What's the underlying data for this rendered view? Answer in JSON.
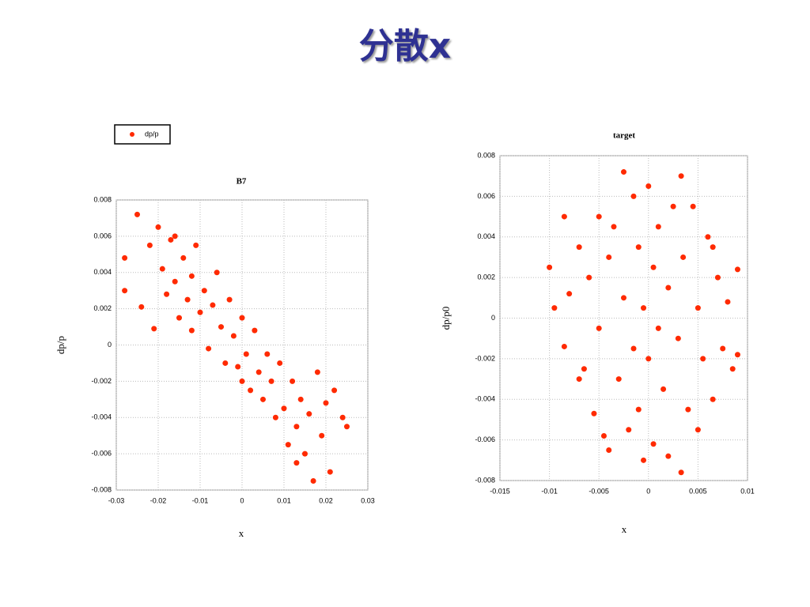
{
  "title": "分散x",
  "chart_data": [
    {
      "type": "scatter",
      "title": "B7",
      "x_label": "x",
      "y_label": "dp/p",
      "xlim": [
        -0.03,
        0.03
      ],
      "xticks": [
        -0.03,
        -0.02,
        -0.01,
        0,
        0.01,
        0.02,
        0.03
      ],
      "ylim": [
        -0.008,
        0.008
      ],
      "yticks": [
        -0.008,
        -0.006,
        -0.004,
        -0.002,
        0,
        0.002,
        0.004,
        0.006,
        0.008
      ],
      "grid": true,
      "series": [
        {
          "name": "dp/p",
          "color": "#ff2a00",
          "x": [
            -0.025,
            -0.028,
            -0.028,
            -0.024,
            -0.022,
            -0.02,
            -0.019,
            -0.018,
            -0.017,
            -0.016,
            -0.015,
            -0.014,
            -0.013,
            -0.012,
            -0.012,
            -0.011,
            -0.01,
            -0.009,
            -0.008,
            -0.007,
            -0.006,
            -0.005,
            -0.004,
            -0.003,
            -0.002,
            -0.001,
            0,
            0.001,
            0.002,
            0.003,
            0.004,
            0.005,
            0.006,
            0.007,
            0.008,
            0.009,
            0.01,
            0.011,
            0.012,
            0.013,
            0.014,
            0.015,
            0.016,
            0.017,
            0.018,
            0.019,
            0.02,
            0.021,
            0.022,
            0.024,
            0.025,
            -0.021,
            0,
            0.013,
            -0.016
          ],
          "values": [
            0.0072,
            0.0048,
            0.003,
            0.0021,
            0.0055,
            0.0065,
            0.0042,
            0.0028,
            0.0058,
            0.0035,
            0.0015,
            0.0048,
            0.0025,
            0.0038,
            0.0008,
            0.0055,
            0.0018,
            0.003,
            -0.0002,
            0.0022,
            0.004,
            0.001,
            -0.001,
            0.0025,
            0.0005,
            -0.0012,
            0.0015,
            -0.0005,
            -0.0025,
            0.0008,
            -0.0015,
            -0.003,
            -0.0005,
            -0.002,
            -0.004,
            -0.001,
            -0.0035,
            -0.0055,
            -0.002,
            -0.0045,
            -0.003,
            -0.006,
            -0.0038,
            -0.0075,
            -0.0015,
            -0.005,
            -0.0032,
            -0.007,
            -0.0025,
            -0.004,
            -0.0045,
            0.0009,
            -0.002,
            -0.0065,
            0.006
          ]
        }
      ]
    },
    {
      "type": "scatter",
      "title": "target",
      "x_label": "x",
      "y_label": "dp/p0",
      "xlim": [
        -0.015,
        0.01
      ],
      "xticks": [
        -0.015,
        -0.01,
        -0.005,
        0,
        0.005,
        0.01
      ],
      "ylim": [
        -0.008,
        0.008
      ],
      "yticks": [
        -0.008,
        -0.006,
        -0.004,
        -0.002,
        0,
        0.002,
        0.004,
        0.006,
        0.008
      ],
      "grid": true,
      "color": "#ff2a00",
      "x": [
        -0.01,
        -0.0095,
        -0.0085,
        -0.0085,
        -0.008,
        -0.007,
        -0.0065,
        -0.006,
        -0.0055,
        -0.005,
        -0.005,
        -0.0045,
        -0.004,
        -0.004,
        -0.0035,
        -0.003,
        -0.0025,
        -0.0025,
        -0.002,
        -0.0015,
        -0.0015,
        -0.001,
        -0.001,
        -0.0005,
        -0.0005,
        0,
        0,
        0.0005,
        0.0005,
        0.001,
        0.001,
        0.0015,
        0.002,
        0.002,
        0.0025,
        0.003,
        0.0033,
        0.0033,
        0.0035,
        0.004,
        0.0045,
        0.005,
        0.005,
        0.0055,
        0.006,
        0.0065,
        0.007,
        0.0075,
        0.008,
        0.0085,
        0.009,
        0.009,
        -0.007,
        0.0065
      ],
      "values": [
        0.0025,
        0.0005,
        0.005,
        -0.0014,
        0.0012,
        0.0035,
        -0.0025,
        0.002,
        -0.0047,
        0.005,
        -0.0005,
        -0.0058,
        0.003,
        -0.0065,
        0.0045,
        -0.003,
        0.0072,
        0.001,
        -0.0055,
        0.006,
        -0.0015,
        0.0035,
        -0.0045,
        0.0005,
        -0.007,
        0.0065,
        -0.002,
        0.0025,
        -0.0062,
        -0.0005,
        0.0045,
        -0.0035,
        0.0015,
        -0.0068,
        0.0055,
        -0.001,
        0.007,
        -0.0076,
        0.003,
        -0.0045,
        0.0055,
        0.0005,
        -0.0055,
        -0.002,
        0.004,
        -0.004,
        0.002,
        -0.0015,
        0.0008,
        -0.0025,
        0.0024,
        -0.0018,
        -0.003,
        0.0035
      ]
    }
  ]
}
